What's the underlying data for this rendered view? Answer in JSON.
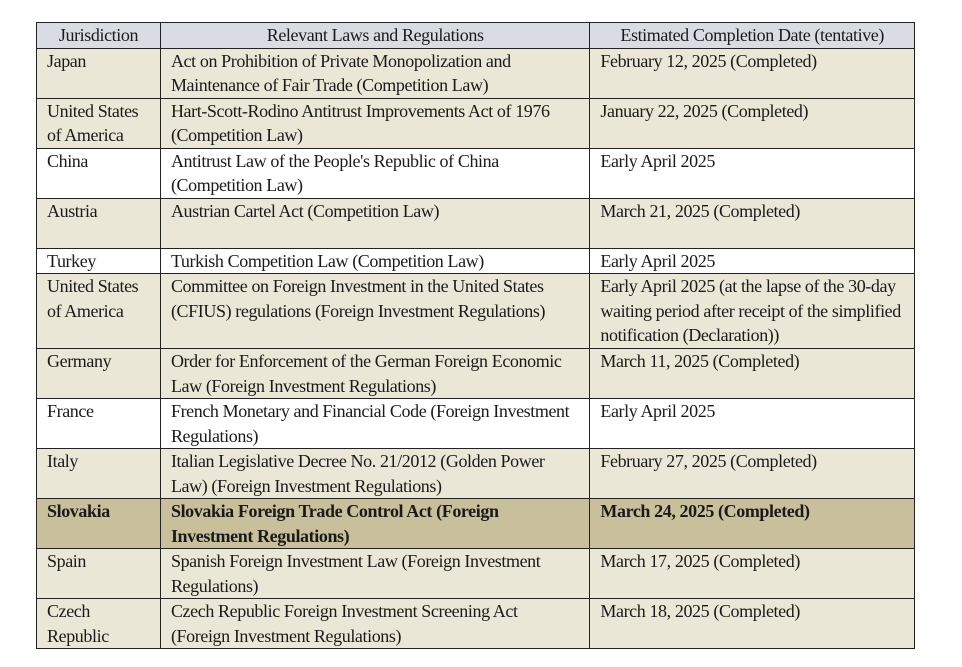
{
  "headers": [
    "Jurisdiction",
    "Relevant Laws and Regulations",
    "Estimated Completion Date (tentative)"
  ],
  "rows": [
    {
      "jurisdiction": "Japan",
      "law": "Act on Prohibition of Private Monopolization and Maintenance of Fair Trade (Competition Law)",
      "date": "February 12, 2025 (Completed)",
      "style": "tan"
    },
    {
      "jurisdiction": "United States of America",
      "law": "Hart-Scott-Rodino Antitrust Improvements Act of 1976 (Competition Law)",
      "date": "January 22, 2025 (Completed)",
      "style": "tan"
    },
    {
      "jurisdiction": "China",
      "law": "Antitrust Law of the People's Republic of China (Competition Law)",
      "date": "Early April 2025",
      "style": "white"
    },
    {
      "jurisdiction": "Austria",
      "law": "Austrian Cartel Act (Competition Law)",
      "date": "March 21, 2025 (Completed)",
      "style": "tan"
    },
    {
      "jurisdiction": "Turkey",
      "law": "Turkish Competition Law (Competition Law)",
      "date": "Early April 2025",
      "style": "white"
    },
    {
      "jurisdiction": "United States of America",
      "law": "Committee on Foreign Investment in the United States (CFIUS) regulations (Foreign Investment Regulations)",
      "date": "Early April 2025 (at the lapse of the 30-day waiting period after receipt of the simplified notification (Declaration))",
      "style": "tan"
    },
    {
      "jurisdiction": "Germany",
      "law": "Order for Enforcement of the German Foreign Economic Law (Foreign Investment Regulations)",
      "date": "March 11, 2025 (Completed)",
      "style": "tan"
    },
    {
      "jurisdiction": "France",
      "law": "French Monetary and Financial Code (Foreign Investment Regulations)",
      "date": "Early April 2025",
      "style": "white"
    },
    {
      "jurisdiction": "Italy",
      "law": "Italian Legislative Decree No. 21/2012 (Golden Power Law) (Foreign Investment Regulations)",
      "date": "February 27, 2025 (Completed)",
      "style": "tan"
    },
    {
      "jurisdiction": "Slovakia",
      "law": "Slovakia Foreign Trade Control Act (Foreign Investment Regulations)",
      "date": "March 24, 2025 (Completed)",
      "style": "highlighted"
    },
    {
      "jurisdiction": "Spain",
      "law": "Spanish Foreign Investment Law (Foreign Investment Regulations)",
      "date": "March 17, 2025 (Completed)",
      "style": "tan"
    },
    {
      "jurisdiction": "Czech Republic",
      "law": "Czech Republic Foreign Investment Screening Act (Foreign Investment Regulations)",
      "date": "March 18, 2025 (Completed)",
      "style": "tan"
    }
  ],
  "colors": {
    "header": "#d9dde3",
    "tan": "#ebe7d6",
    "highlight": "#c8bf9b"
  }
}
